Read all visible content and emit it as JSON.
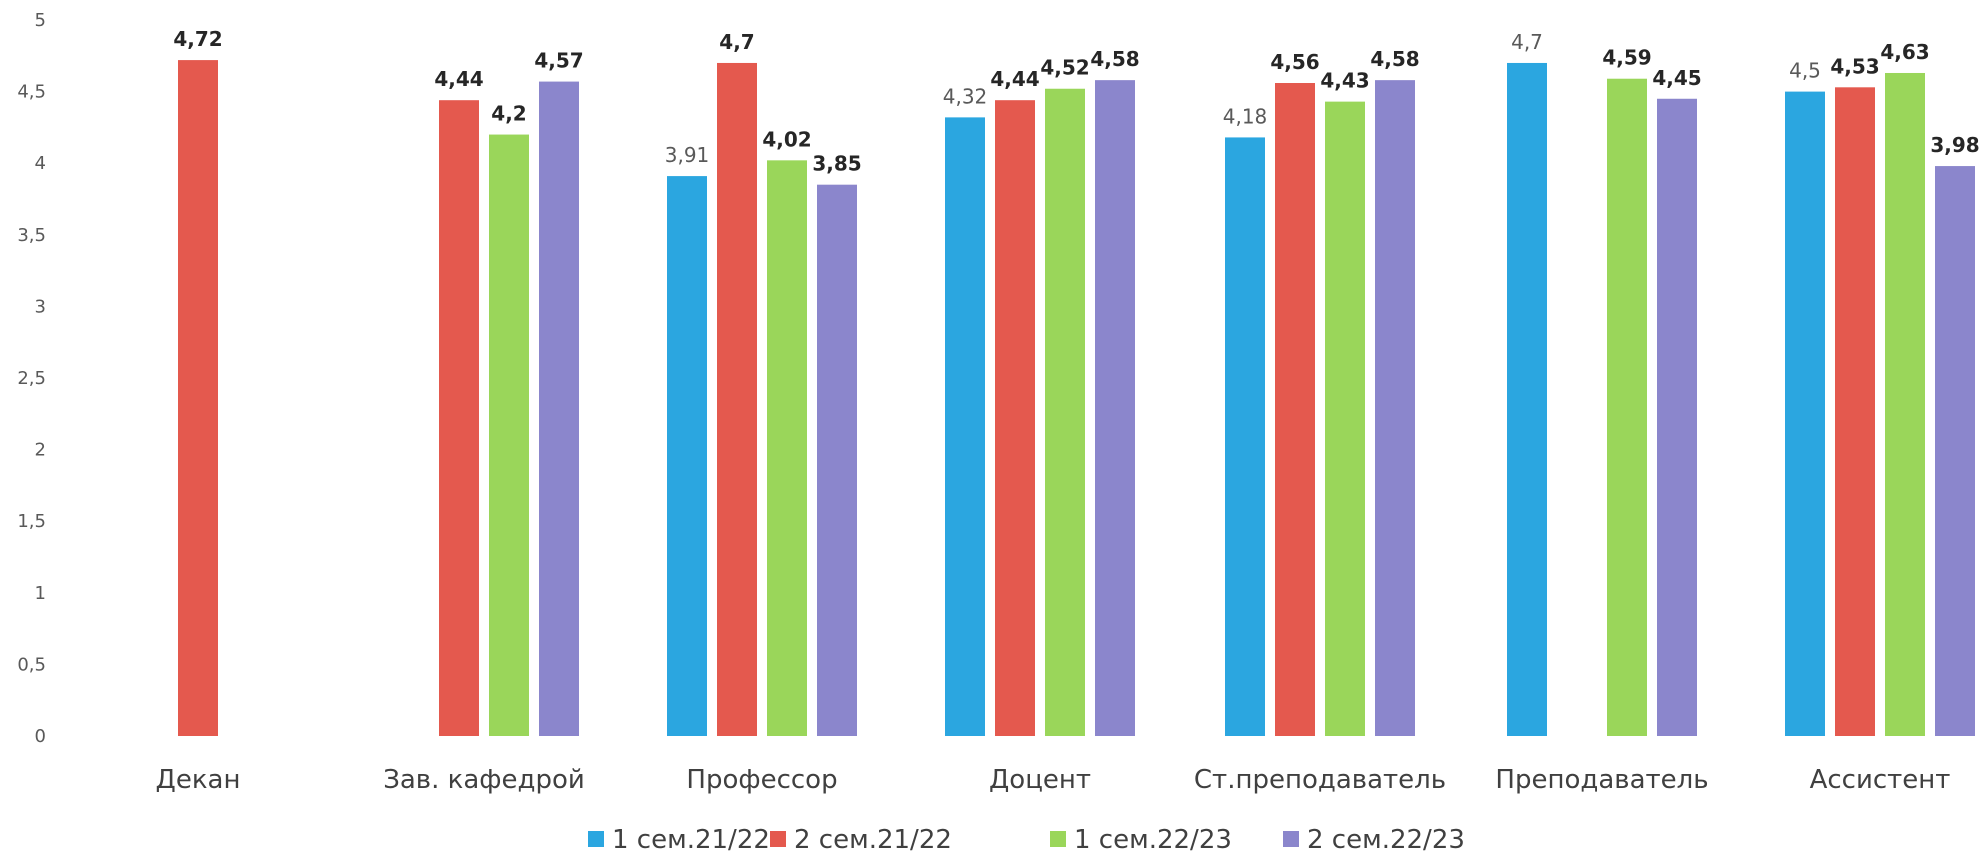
{
  "chart_data": {
    "type": "bar",
    "ylim": [
      0,
      5
    ],
    "yticks": [
      "0",
      "0,5",
      "1",
      "1,5",
      "2",
      "2,5",
      "3",
      "3,5",
      "4",
      "4,5",
      "5"
    ],
    "categories": [
      "Декан",
      "Зав. кафедрой",
      "Профессор",
      "Доцент",
      "Ст.преподаватель",
      "Преподаватель",
      "Ассистент"
    ],
    "series": [
      {
        "name": "1 сем.21/22",
        "color": "#2BA6E0",
        "values": [
          null,
          null,
          3.91,
          4.32,
          4.18,
          4.7,
          4.5
        ],
        "labels": [
          null,
          null,
          "3,91",
          "4,32",
          "4,18",
          "4,7",
          "4,5"
        ]
      },
      {
        "name": "2 сем.21/22",
        "color": "#E4594E",
        "values": [
          4.72,
          4.44,
          4.7,
          4.44,
          4.56,
          null,
          4.53
        ],
        "labels": [
          "4,72",
          "4,44",
          "4,7",
          "4,44",
          "4,56",
          null,
          "4,53"
        ]
      },
      {
        "name": "1 сем.22/23",
        "color": "#9AD65A",
        "values": [
          null,
          4.2,
          4.02,
          4.52,
          4.43,
          4.59,
          4.63
        ],
        "labels": [
          null,
          "4,2",
          "4,02",
          "4,52",
          "4,43",
          "4,59",
          "4,63"
        ]
      },
      {
        "name": "2 сем.22/23",
        "color": "#8B86CC",
        "values": [
          null,
          4.57,
          3.85,
          4.58,
          4.58,
          4.45,
          3.98
        ],
        "labels": [
          null,
          "4,57",
          "3,85",
          "4,58",
          "4,58",
          "4,45",
          "3,98"
        ]
      }
    ],
    "grid": false,
    "legend_position": "bottom"
  }
}
